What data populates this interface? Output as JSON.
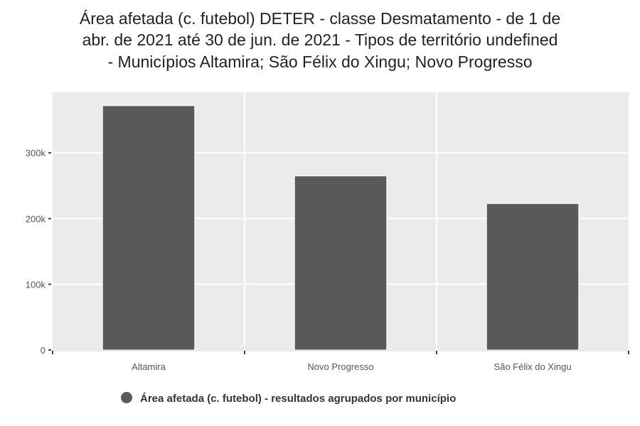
{
  "chart_data": {
    "type": "bar",
    "title_lines": [
      "Área afetada (c. futebol) DETER - classe Desmatamento - de 1 de",
      "abr. de 2021 até 30 de jun. de 2021 - Tipos de território undefined",
      "- Municípios Altamira; São Félix do Xingu; Novo Progresso"
    ],
    "categories": [
      "Altamira",
      "Novo Progresso",
      "São Félix do Xingu"
    ],
    "values": [
      371700,
      264800,
      222700
    ],
    "yticks": [
      0,
      100000,
      200000,
      300000
    ],
    "ytick_labels": [
      "0",
      "100k",
      "200k",
      "300k"
    ],
    "ylim": [
      0,
      392000
    ],
    "xlabel": "",
    "ylabel": "",
    "grid": true,
    "legend": {
      "position": "bottom",
      "label": "Área afetada (c. futebol) - resultados agrupados por município"
    },
    "colors": {
      "bar": "#595959",
      "panel": "#ebebeb",
      "grid": "#ffffff"
    }
  }
}
